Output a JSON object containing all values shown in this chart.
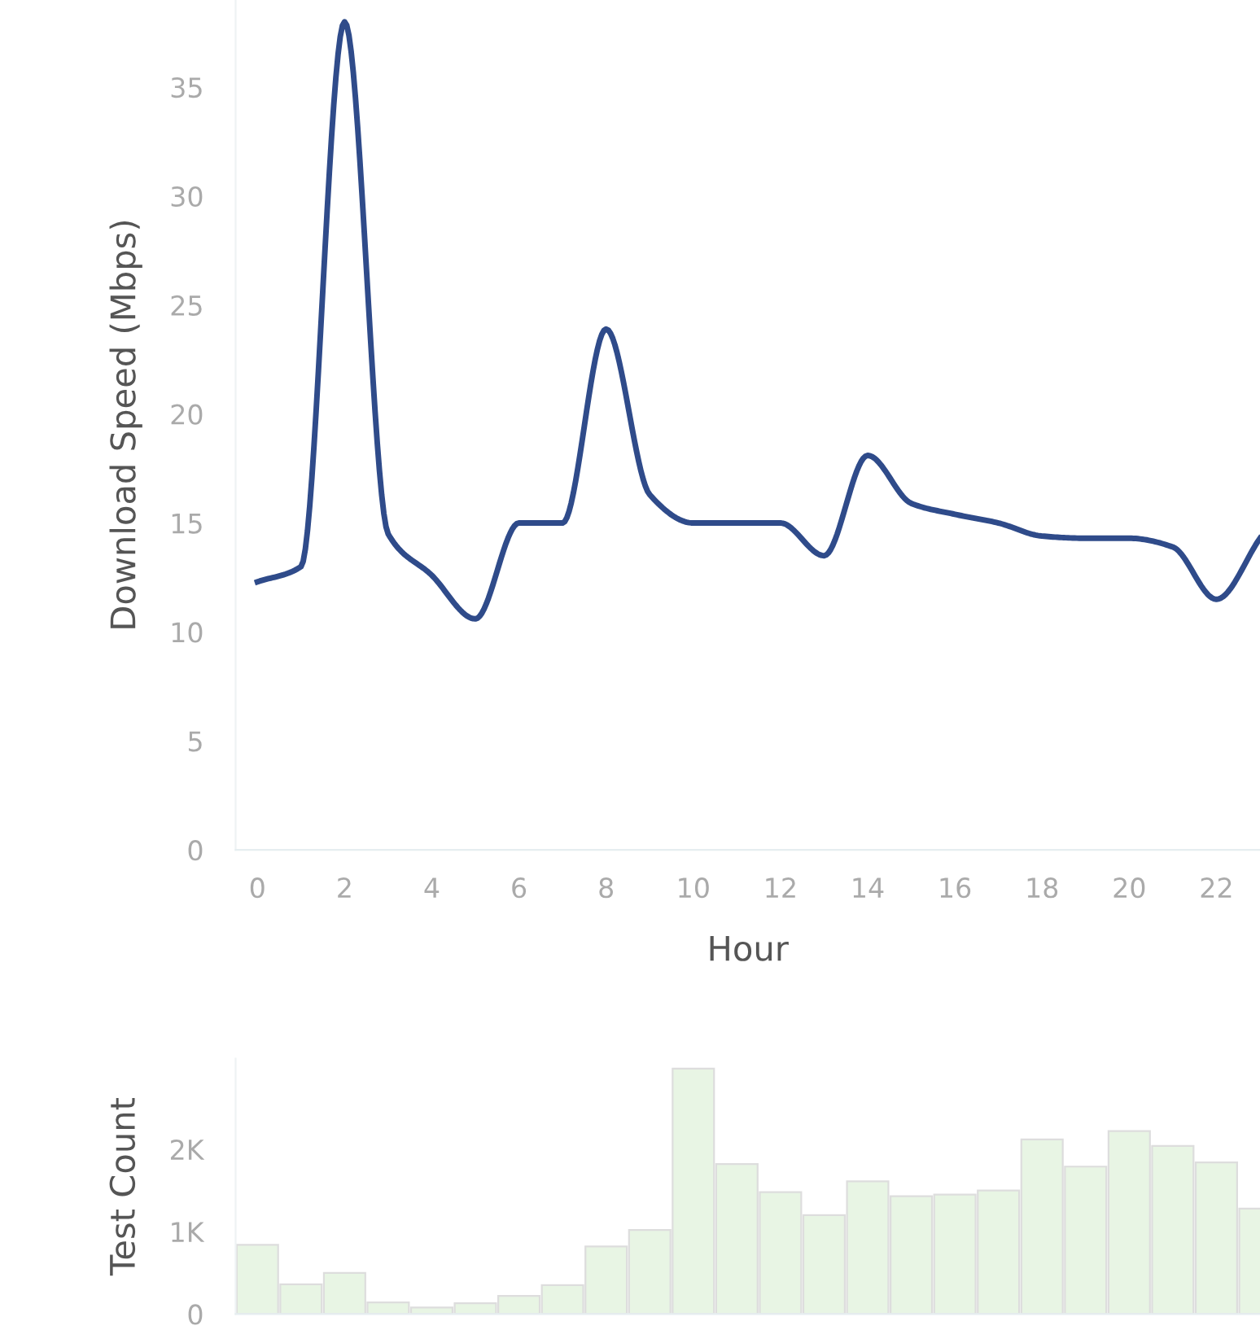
{
  "chart_data": [
    {
      "type": "line",
      "xlabel": "Hour",
      "ylabel": "Download Speed (Mbps)",
      "x": [
        0,
        1,
        2,
        3,
        4,
        5,
        6,
        7,
        8,
        9,
        10,
        11,
        12,
        13,
        14,
        15,
        16,
        17,
        18,
        19,
        20,
        21,
        22,
        23
      ],
      "series": [
        {
          "color": "#2f4b8a",
          "values": [
            12.3,
            13.0,
            38.0,
            14.5,
            12.6,
            10.6,
            15.0,
            15.0,
            23.9,
            16.3,
            15.0,
            15.0,
            15.0,
            13.5,
            18.1,
            15.9,
            15.4,
            15.0,
            14.4,
            14.3,
            14.3,
            13.9,
            11.5,
            14.3
          ]
        }
      ],
      "xlim": [
        -0.5,
        23
      ],
      "xticks": [
        0,
        2,
        4,
        6,
        8,
        10,
        12,
        14,
        16,
        18,
        20,
        22
      ],
      "ylim": [
        0,
        39
      ],
      "yticks": [
        0,
        5,
        10,
        15,
        20,
        25,
        30,
        35
      ],
      "grid": false,
      "marker": "none",
      "line_style": "solid"
    },
    {
      "type": "bar",
      "ylabel": "Test Count",
      "x": [
        0,
        1,
        2,
        3,
        4,
        5,
        6,
        7,
        8,
        9,
        10,
        11,
        12,
        13,
        14,
        15,
        16,
        17,
        18,
        19,
        20,
        21,
        22,
        23
      ],
      "series": [
        {
          "color": "#e8f5e4",
          "values": [
            840,
            360,
            500,
            140,
            80,
            130,
            220,
            350,
            820,
            1020,
            2980,
            1820,
            1480,
            1200,
            1610,
            1430,
            1450,
            1500,
            2120,
            1790,
            2220,
            2040,
            1840,
            1280
          ]
        }
      ],
      "xlim": [
        -0.5,
        23
      ],
      "ylim": [
        0,
        3100
      ],
      "yticks": [
        {
          "value": 0,
          "label": "0"
        },
        {
          "value": 1000,
          "label": "1K"
        },
        {
          "value": 2000,
          "label": "2K"
        }
      ],
      "tick_labels": "y",
      "grid": false
    }
  ]
}
